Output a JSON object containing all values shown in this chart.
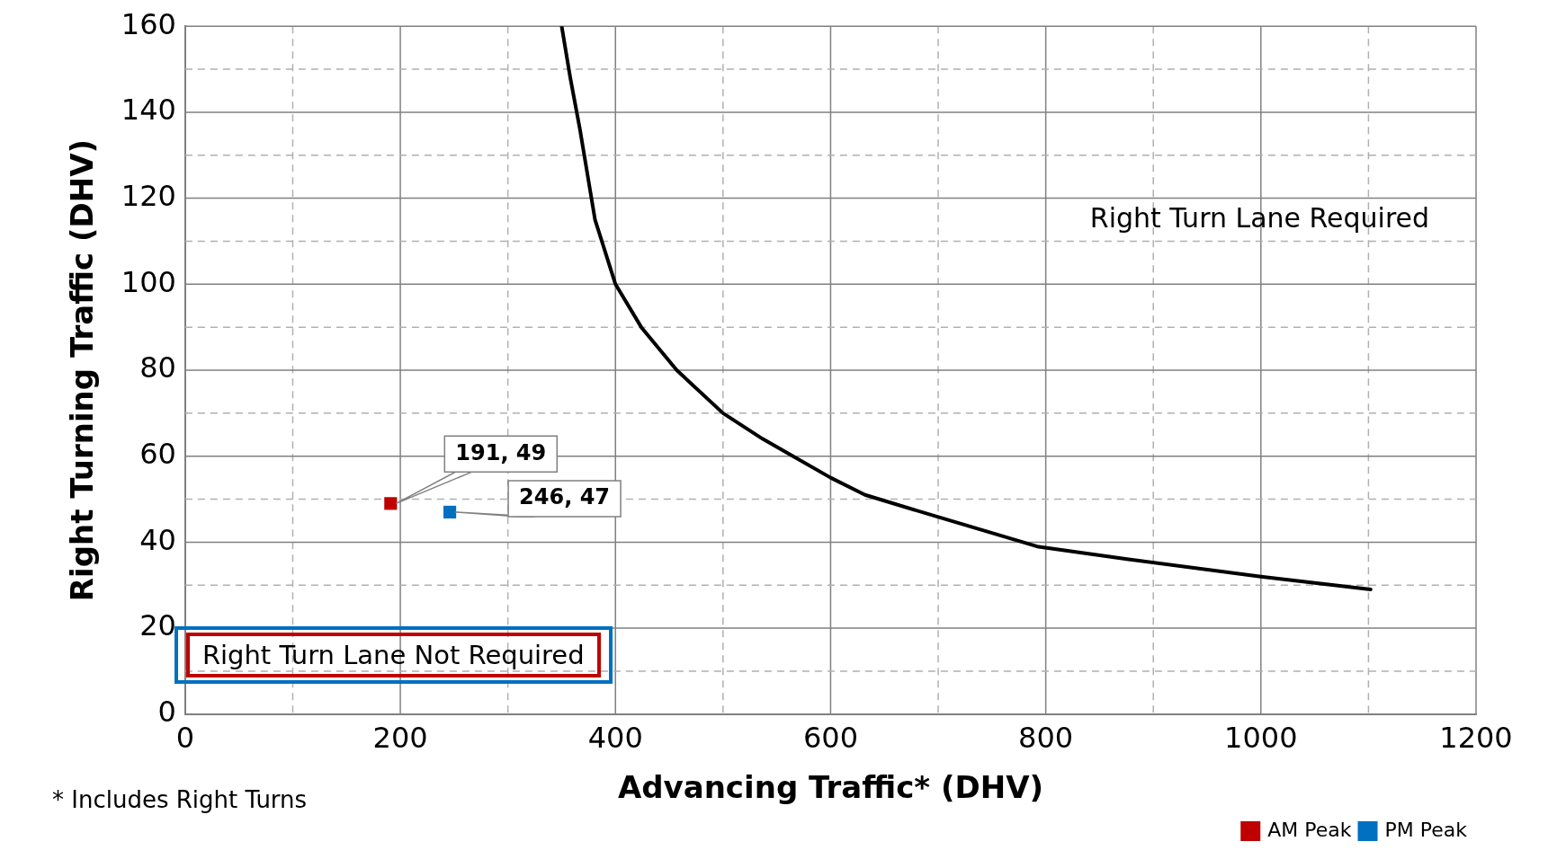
{
  "chart_data": {
    "type": "scatter",
    "xlabel": "Advancing Traffic* (DHV)",
    "ylabel": "Right Turning Traffic (DHV)",
    "xlim": [
      0,
      1200
    ],
    "ylim": [
      0,
      160
    ],
    "xticks": [
      0,
      {
        "value": 100,
        "label": null
      },
      200,
      {
        "value": 300,
        "label": null
      },
      400,
      {
        "value": 500,
        "label": null
      },
      600,
      {
        "value": 700,
        "label": null
      },
      800,
      {
        "value": 900,
        "label": null
      },
      1000,
      {
        "value": 1100,
        "label": null
      },
      1200
    ],
    "yticks": [
      0,
      {
        "value": 10,
        "label": null
      },
      20,
      {
        "value": 30,
        "label": null
      },
      40,
      {
        "value": 50,
        "label": null
      },
      60,
      {
        "value": 70,
        "label": null
      },
      80,
      {
        "value": 90,
        "label": null
      },
      100,
      {
        "value": 110,
        "label": null
      },
      120,
      {
        "value": 130,
        "label": null
      },
      140,
      {
        "value": 150,
        "label": null
      },
      160
    ],
    "grid": true,
    "legend": "bottom right",
    "marker": "square",
    "series": [
      {
        "type": "line",
        "color": "#000000",
        "marker": "none",
        "x": [
          350,
          358,
          367,
          381,
          400,
          424,
          457,
          500,
          537,
          600,
          632,
          698,
          792,
          877,
          1000,
          1102
        ],
        "values": [
          160,
          148,
          136,
          115,
          100,
          90,
          80,
          70,
          64,
          55,
          51,
          46,
          39,
          36,
          32,
          29
        ]
      },
      {
        "name": "AM Peak",
        "color": "#c00000",
        "x": [
          191
        ],
        "values": [
          49
        ],
        "value_labels": [
          "191, 49"
        ]
      },
      {
        "name": "PM Peak",
        "color": "#0070c0",
        "x": [
          246
        ],
        "values": [
          47
        ],
        "value_labels": [
          "246, 47"
        ]
      }
    ],
    "annotations": [
      "Right Turn Lane Required",
      "Right Turn Lane Not Required",
      "* Includes Right Turns"
    ]
  }
}
